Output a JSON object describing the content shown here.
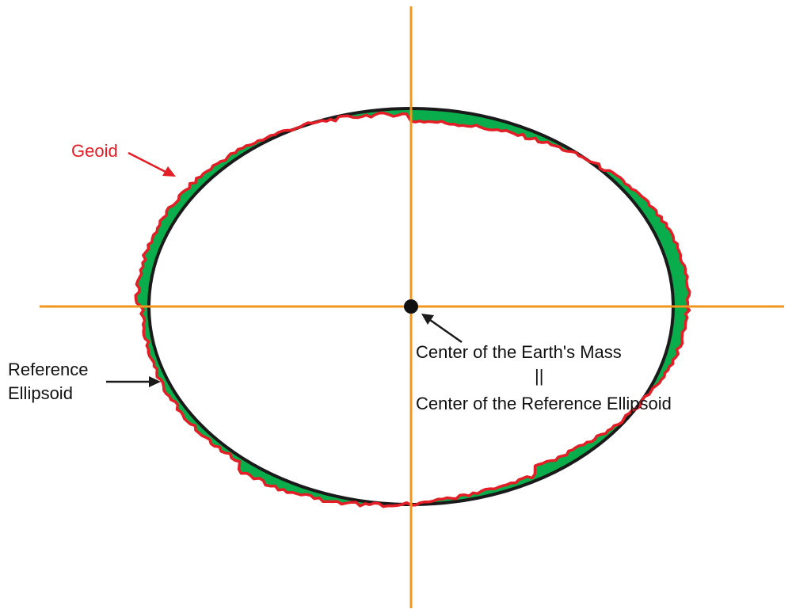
{
  "labels": {
    "geoid": "Geoid",
    "reference_line1": "Reference",
    "reference_line2": "Ellipsoid",
    "center_line1": "Center of the Earth's Mass",
    "center_line2": "||",
    "center_line3": "Center of the Reference Ellipsoid"
  },
  "colors": {
    "axes": "#f0961e",
    "geoid": "#e41e26",
    "ellipsoid": "#1a1a1a",
    "undulation_fill": "#0aad4b",
    "center_dot": "#111111",
    "arrow": "#1a1a1a",
    "geoid_text": "#e41e26",
    "text": "#111111"
  },
  "icons": {
    "center": "filled-circle",
    "pointers": "arrow"
  }
}
